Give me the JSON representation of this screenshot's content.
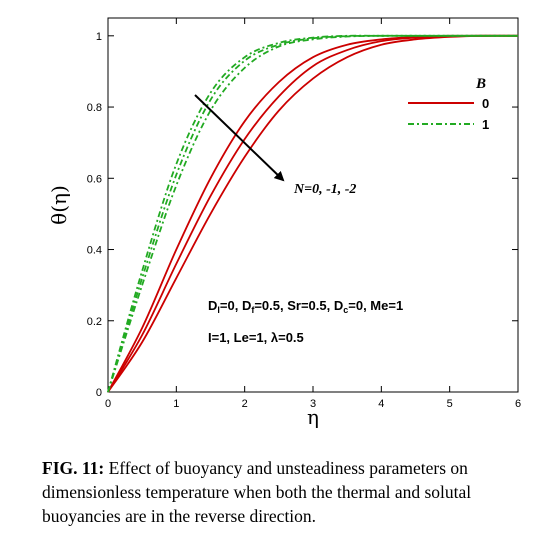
{
  "chart_data": {
    "type": "line",
    "xlabel": "η",
    "ylabel": "θ(η)",
    "xlim": [
      0,
      6
    ],
    "ylim": [
      0,
      1.05
    ],
    "xticks": [
      "0",
      "1",
      "2",
      "3",
      "4",
      "5",
      "6"
    ],
    "yticks": [
      "0",
      "0.2",
      "0.4",
      "0.6",
      "0.8",
      "1"
    ],
    "grid": false,
    "legend": {
      "title": "B",
      "placement": "top-right",
      "entries": [
        "0",
        "1"
      ]
    },
    "colors": {
      "B0": "#cc0000",
      "B1": "#22aa22"
    },
    "series": [
      {
        "group": "B=0",
        "N": "0",
        "x": [
          0,
          0.5,
          1,
          1.5,
          2,
          2.5,
          3,
          3.5,
          4,
          4.5,
          5,
          5.5,
          6
        ],
        "y": [
          0,
          0.18,
          0.4,
          0.6,
          0.76,
          0.87,
          0.94,
          0.975,
          0.99,
          0.997,
          1,
          1,
          1
        ]
      },
      {
        "group": "B=0",
        "N": "-1",
        "x": [
          0,
          0.5,
          1,
          1.5,
          2,
          2.5,
          3,
          3.5,
          4,
          4.5,
          5,
          5.5,
          6
        ],
        "y": [
          0,
          0.16,
          0.36,
          0.55,
          0.71,
          0.83,
          0.915,
          0.96,
          0.985,
          0.995,
          0.999,
          1,
          1
        ]
      },
      {
        "group": "B=0",
        "N": "-2",
        "x": [
          0,
          0.5,
          1,
          1.5,
          2,
          2.5,
          3,
          3.5,
          4,
          4.5,
          5,
          5.5,
          6
        ],
        "y": [
          0,
          0.14,
          0.32,
          0.5,
          0.66,
          0.79,
          0.88,
          0.94,
          0.975,
          0.99,
          0.997,
          1,
          1
        ]
      },
      {
        "group": "B=1",
        "N": "0",
        "x": [
          0,
          0.5,
          1,
          1.5,
          2,
          2.5,
          3,
          3.5,
          4,
          4.5,
          5,
          5.5,
          6
        ],
        "y": [
          0,
          0.34,
          0.64,
          0.84,
          0.94,
          0.98,
          0.995,
          1,
          1,
          1,
          1,
          1,
          1
        ]
      },
      {
        "group": "B=1",
        "N": "-1",
        "x": [
          0,
          0.5,
          1,
          1.5,
          2,
          2.5,
          3,
          3.5,
          4,
          4.5,
          5,
          5.5,
          6
        ],
        "y": [
          0,
          0.32,
          0.61,
          0.82,
          0.93,
          0.975,
          0.993,
          0.999,
          1,
          1,
          1,
          1,
          1
        ]
      },
      {
        "group": "B=1",
        "N": "-2",
        "x": [
          0,
          0.5,
          1,
          1.5,
          2,
          2.5,
          3,
          3.5,
          4,
          4.5,
          5,
          5.5,
          6
        ],
        "y": [
          0,
          0.3,
          0.58,
          0.79,
          0.91,
          0.97,
          0.99,
          0.998,
          1,
          1,
          1,
          1,
          1
        ]
      }
    ],
    "arrow_label": "N=0, -1, -2",
    "annotations": {
      "line1": {
        "parts": [
          "D",
          "l",
          "=0, D",
          "f",
          "=0.5, Sr=0.5, D",
          "c",
          "=0, Me=1"
        ]
      },
      "line2": "I=1, Le=1, λ=0.5"
    }
  },
  "caption": {
    "label": "FIG. 11:",
    "text": "Effect of buoyancy and unsteadiness parameters on dimensionless temperature when both the thermal and solutal buoyancies are in the reverse direction."
  }
}
